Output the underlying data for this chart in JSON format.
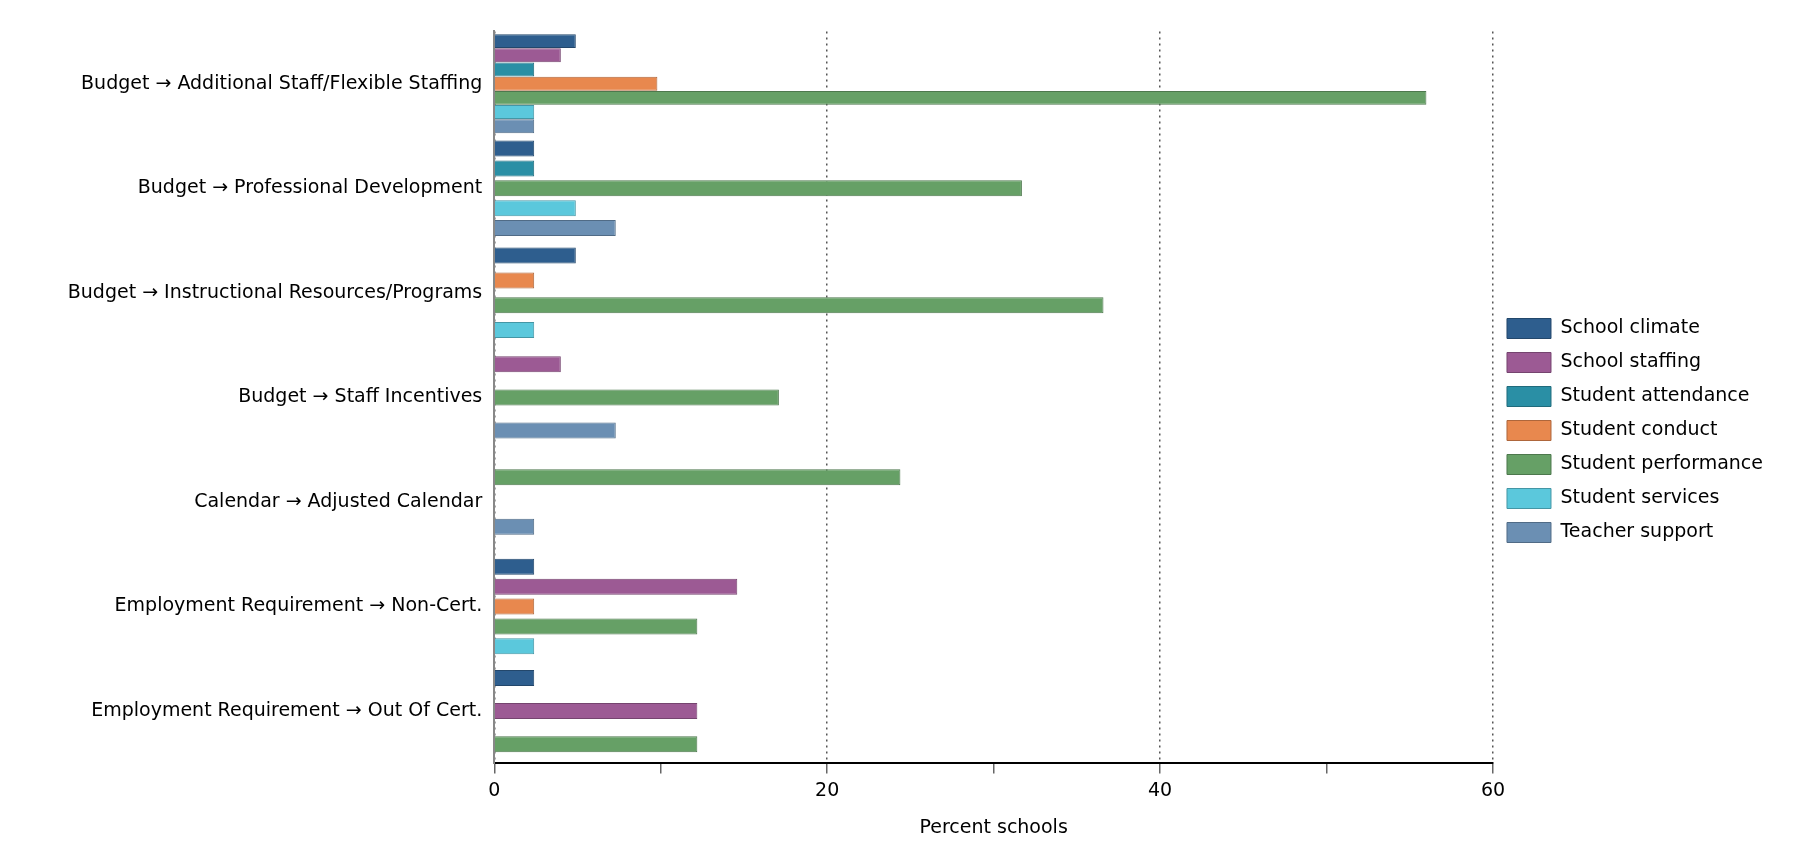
{
  "chart_data": {
    "type": "bar",
    "orientation": "horizontal",
    "xlabel": "Percent schools",
    "categories": [
      "Budget → Additional Staff/Flexible Staffing",
      "Budget → Professional Development",
      "Budget → Instructional Resources/Programs",
      "Budget → Staff Incentives",
      "Calendar → Adjusted Calendar",
      "Employment Requirement → Non-Cert.",
      "Employment Requirement → Out Of Cert."
    ],
    "series": [
      {
        "name": "School climate",
        "color": "#2e5e8e",
        "values": [
          4.9,
          2.4,
          4.9,
          null,
          null,
          2.4,
          2.4
        ]
      },
      {
        "name": "School staffing",
        "color": "#9c5a94",
        "values": [
          4.0,
          null,
          null,
          4.0,
          null,
          14.6,
          12.2
        ]
      },
      {
        "name": "Student attendance",
        "color": "#2a8fa5",
        "values": [
          2.4,
          2.4,
          null,
          null,
          null,
          null,
          null
        ]
      },
      {
        "name": "Student conduct",
        "color": "#e8884e",
        "values": [
          9.8,
          null,
          2.4,
          null,
          null,
          2.4,
          null
        ]
      },
      {
        "name": "Student performance",
        "color": "#66a066",
        "values": [
          56.0,
          31.7,
          36.6,
          17.1,
          24.4,
          12.2,
          12.2
        ]
      },
      {
        "name": "Student services",
        "color": "#5bc8dc",
        "values": [
          2.4,
          4.9,
          2.4,
          null,
          null,
          2.4,
          null
        ]
      },
      {
        "name": "Teacher support",
        "color": "#6b8fb3",
        "values": [
          2.4,
          7.3,
          null,
          7.3,
          2.4,
          null,
          null
        ]
      }
    ],
    "xlim": [
      0,
      60
    ],
    "xticks": [
      0,
      {
        "value": 10,
        "label": null
      },
      20,
      {
        "value": 30,
        "label": null
      },
      40,
      {
        "value": 50,
        "label": null
      },
      60
    ],
    "grid": "x",
    "legend": "right"
  }
}
